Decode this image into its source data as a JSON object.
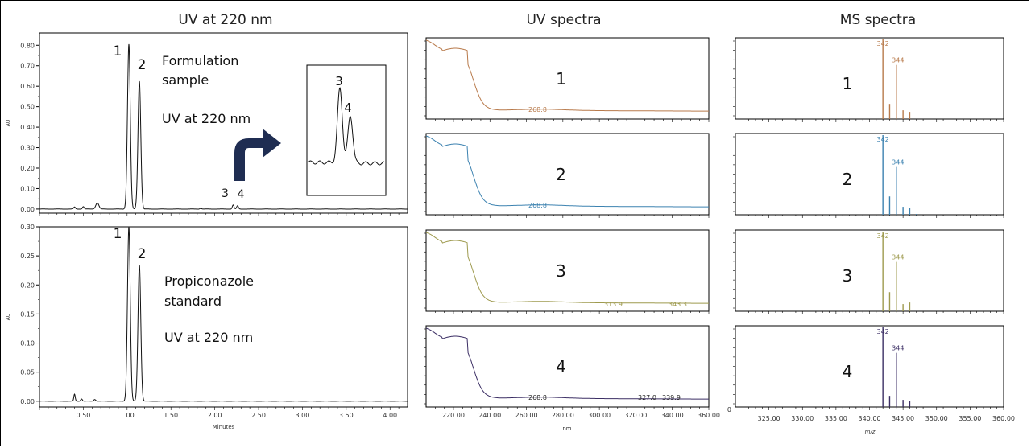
{
  "column_titles": [
    "UV at 220 nm",
    "UV spectra",
    "MS spectra"
  ],
  "colors": {
    "black": "#111111",
    "spectrum1": "#b87a4b",
    "spectrum2": "#3c82b0",
    "spectrum3": "#9e9a4e",
    "spectrum4": "#3b2e64",
    "arrow": "#1f2d52"
  },
  "chart_data": [
    {
      "id": "chrom_formulation",
      "type": "line",
      "title": "",
      "ylabel": "AU",
      "xlabel": "",
      "xlim": [
        0,
        4.2
      ],
      "ylim": [
        -0.02,
        0.86
      ],
      "yticks": [
        "0.00",
        "0.10",
        "0.20",
        "0.30",
        "0.40",
        "0.50",
        "0.60",
        "0.70",
        "0.80"
      ],
      "peaks": [
        {
          "x": 0.4,
          "y": 0.01,
          "w": 0.01
        },
        {
          "x": 0.5,
          "y": 0.012,
          "w": 0.01
        },
        {
          "x": 0.66,
          "y": 0.03,
          "w": 0.018
        },
        {
          "x": 1.02,
          "y": 0.805,
          "w": 0.016
        },
        {
          "x": 1.14,
          "y": 0.625,
          "w": 0.016
        },
        {
          "x": 1.84,
          "y": 0.004,
          "w": 0.01
        },
        {
          "x": 2.21,
          "y": 0.02,
          "w": 0.01
        },
        {
          "x": 2.26,
          "y": 0.016,
          "w": 0.01
        }
      ],
      "peak_labels": [
        {
          "label": "1",
          "x": 1.02,
          "y": 0.805
        },
        {
          "label": "2",
          "x": 1.14,
          "y": 0.625
        },
        {
          "label": "3",
          "x": 2.21,
          "y": 0.02
        },
        {
          "label": "4",
          "x": 2.26,
          "y": 0.016
        }
      ],
      "annotation_lines": [
        "Formulation",
        "sample",
        "UV at 220 nm"
      ]
    },
    {
      "id": "chrom_standard",
      "type": "line",
      "title": "",
      "ylabel": "AU",
      "xlabel": "Minutes",
      "xlim": [
        0,
        4.2
      ],
      "ylim": [
        -0.01,
        0.3
      ],
      "yticks": [
        "0.00",
        "0.05",
        "0.10",
        "0.15",
        "0.20",
        "0.25",
        "0.30"
      ],
      "xticks": [
        "0.50",
        "1.00",
        "1.50",
        "2.00",
        "2.50",
        "3.00",
        "3.50",
        "4.00"
      ],
      "peaks": [
        {
          "x": 0.4,
          "y": 0.012,
          "w": 0.008
        },
        {
          "x": 0.48,
          "y": 0.004,
          "w": 0.01
        },
        {
          "x": 0.63,
          "y": 0.003,
          "w": 0.012
        },
        {
          "x": 1.02,
          "y": 0.3,
          "w": 0.016
        },
        {
          "x": 1.14,
          "y": 0.235,
          "w": 0.016
        }
      ],
      "peak_labels": [
        {
          "label": "1",
          "x": 1.02,
          "y": 0.3
        },
        {
          "label": "2",
          "x": 1.14,
          "y": 0.235
        }
      ],
      "annotation_lines": [
        "Propiconazole",
        "standard",
        "UV at 220 nm"
      ]
    },
    {
      "id": "inset",
      "type": "line",
      "title": "",
      "peak_labels": [
        "3",
        "4"
      ]
    },
    {
      "id": "uv_spectra",
      "type": "line",
      "title": "UV spectra",
      "xlabel": "nm",
      "xlim": [
        205,
        360
      ],
      "xticks": [
        "220.00",
        "240.00",
        "260.00",
        "280.00",
        "300.00",
        "320.00",
        "340.00",
        "360.00"
      ],
      "series": [
        {
          "name": "1",
          "labels": [
            "268.8"
          ]
        },
        {
          "name": "2",
          "labels": [
            "268.8"
          ]
        },
        {
          "name": "3",
          "labels": [
            "313.9",
            "343.3"
          ]
        },
        {
          "name": "4",
          "labels": [
            "268.8",
            "327.0",
            "339.9"
          ]
        }
      ]
    },
    {
      "id": "ms_spectra",
      "type": "bar",
      "title": "MS spectra",
      "xlabel": "m/z",
      "xlim": [
        320,
        360
      ],
      "xticks": [
        "325.00",
        "330.00",
        "335.00",
        "340.00",
        "345.00",
        "350.00",
        "355.00",
        "360.00"
      ],
      "y_zero_label": "0",
      "series": [
        {
          "name": "1",
          "values": [
            [
              342,
              1.0
            ],
            [
              343,
              0.19
            ],
            [
              344,
              0.68
            ],
            [
              345,
              0.11
            ],
            [
              346,
              0.09
            ]
          ],
          "labels": [
            "342",
            "344"
          ]
        },
        {
          "name": "2",
          "values": [
            [
              342,
              1.0
            ],
            [
              343,
              0.23
            ],
            [
              344,
              0.6
            ],
            [
              345,
              0.1
            ],
            [
              346,
              0.09
            ],
            [
              347,
              0.01
            ]
          ],
          "labels": [
            "342",
            "344"
          ]
        },
        {
          "name": "3",
          "values": [
            [
              342,
              1.0
            ],
            [
              343,
              0.24
            ],
            [
              344,
              0.62
            ],
            [
              345,
              0.09
            ],
            [
              346,
              0.11
            ]
          ],
          "labels": [
            "342",
            "344"
          ]
        },
        {
          "name": "4",
          "values": [
            [
              342,
              1.0
            ],
            [
              343,
              0.14
            ],
            [
              344,
              0.68
            ],
            [
              345,
              0.09
            ],
            [
              346,
              0.08
            ]
          ],
          "labels": [
            "342",
            "344"
          ]
        }
      ]
    }
  ]
}
